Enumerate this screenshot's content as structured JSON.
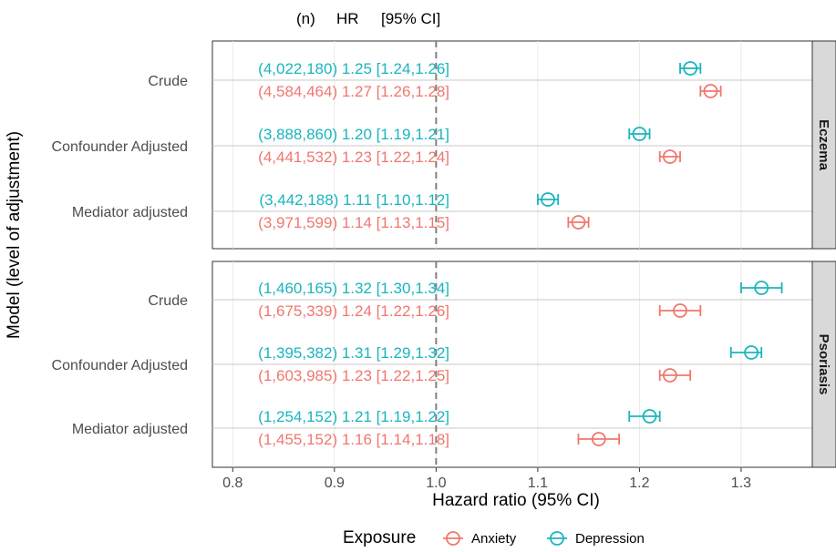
{
  "chart_data": {
    "type": "scatter",
    "subtype": "forest-plot",
    "header": {
      "n": "(n)",
      "hr": "HR",
      "ci": "[95% CI]"
    },
    "xlabel": "Hazard ratio (95% CI)",
    "ylabel": "Model (level of adjustment)",
    "xlim": [
      0.78,
      1.37
    ],
    "xticks": [
      0.8,
      0.9,
      1.0,
      1.1,
      1.2,
      1.3
    ],
    "xtick_labels": [
      "0.8",
      "0.9",
      "1.0",
      "1.1",
      "1.2",
      "1.3"
    ],
    "reference_line": 1.0,
    "grid": true,
    "facets": [
      {
        "label": "Eczema",
        "models": [
          {
            "label": "Crude",
            "rows": [
              {
                "series": "Depression",
                "text": "(4,022,180) 1.25 [1.24,1.26]",
                "hr": 1.25,
                "lo": 1.24,
                "hi": 1.26
              },
              {
                "series": "Anxiety",
                "text": "(4,584,464) 1.27 [1.26,1.28]",
                "hr": 1.27,
                "lo": 1.26,
                "hi": 1.28
              }
            ]
          },
          {
            "label": "Confounder Adjusted",
            "rows": [
              {
                "series": "Depression",
                "text": "(3,888,860) 1.20 [1.19,1.21]",
                "hr": 1.2,
                "lo": 1.19,
                "hi": 1.21
              },
              {
                "series": "Anxiety",
                "text": "(4,441,532) 1.23 [1.22,1.24]",
                "hr": 1.23,
                "lo": 1.22,
                "hi": 1.24
              }
            ]
          },
          {
            "label": "Mediator adjusted",
            "rows": [
              {
                "series": "Depression",
                "text": "(3,442,188) 1.11 [1.10,1.12]",
                "hr": 1.11,
                "lo": 1.1,
                "hi": 1.12
              },
              {
                "series": "Anxiety",
                "text": "(3,971,599) 1.14 [1.13,1.15]",
                "hr": 1.14,
                "lo": 1.13,
                "hi": 1.15
              }
            ]
          }
        ]
      },
      {
        "label": "Psoriasis",
        "models": [
          {
            "label": "Crude",
            "rows": [
              {
                "series": "Depression",
                "text": "(1,460,165) 1.32 [1.30,1.34]",
                "hr": 1.32,
                "lo": 1.3,
                "hi": 1.34
              },
              {
                "series": "Anxiety",
                "text": "(1,675,339) 1.24 [1.22,1.26]",
                "hr": 1.24,
                "lo": 1.22,
                "hi": 1.26
              }
            ]
          },
          {
            "label": "Confounder Adjusted",
            "rows": [
              {
                "series": "Depression",
                "text": "(1,395,382) 1.31 [1.29,1.32]",
                "hr": 1.31,
                "lo": 1.29,
                "hi": 1.32
              },
              {
                "series": "Anxiety",
                "text": "(1,603,985) 1.23 [1.22,1.25]",
                "hr": 1.23,
                "lo": 1.22,
                "hi": 1.25
              }
            ]
          },
          {
            "label": "Mediator adjusted",
            "rows": [
              {
                "series": "Depression",
                "text": "(1,254,152) 1.21 [1.19,1.22]",
                "hr": 1.21,
                "lo": 1.19,
                "hi": 1.22
              },
              {
                "series": "Anxiety",
                "text": "(1,455,152) 1.16 [1.14,1.18]",
                "hr": 1.16,
                "lo": 1.14,
                "hi": 1.18
              }
            ]
          }
        ]
      }
    ],
    "legend": {
      "title": "Exposure",
      "position": "bottom",
      "entries": [
        {
          "name": "Anxiety",
          "color": "#F0776E"
        },
        {
          "name": "Depression",
          "color": "#19B5BF"
        }
      ]
    }
  }
}
